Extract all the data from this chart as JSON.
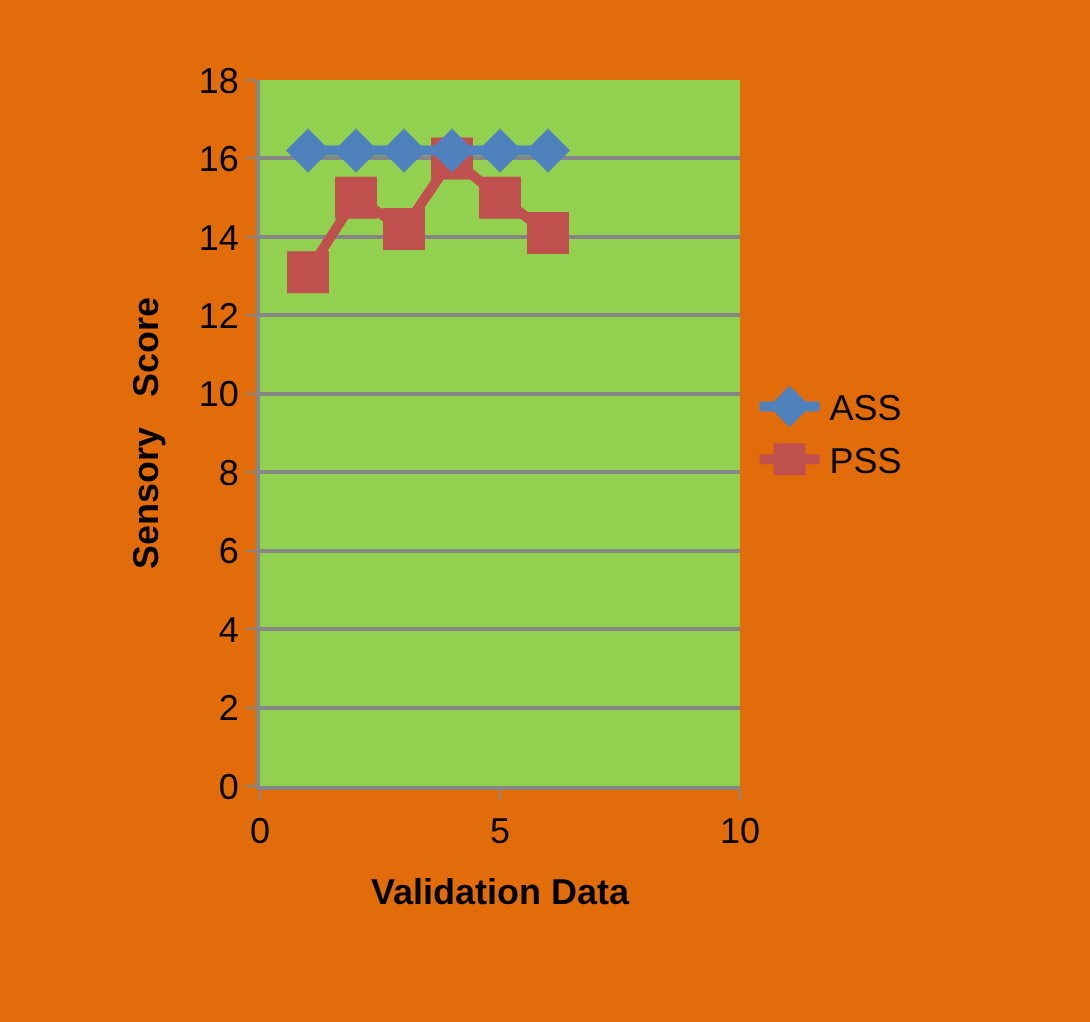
{
  "chart_data": {
    "type": "line",
    "xlabel": "Validation Data",
    "ylabel": "Sensory   Score",
    "x": [
      1,
      2,
      3,
      4,
      5,
      6
    ],
    "series": [
      {
        "name": "ASS",
        "color": "#4f81bd",
        "values": [
          16.2,
          16.2,
          16.2,
          16.2,
          16.2,
          16.2
        ],
        "marker": "diamond"
      },
      {
        "name": "PSS",
        "color": "#c0504d",
        "values": [
          13.1,
          15.0,
          14.2,
          16.0,
          15.0,
          14.1
        ],
        "marker": "square"
      }
    ],
    "xlim": [
      0,
      10
    ],
    "xticks": [
      0,
      5,
      10
    ],
    "ylim": [
      0,
      18
    ],
    "yticks": [
      0,
      2,
      4,
      6,
      8,
      10,
      12,
      14,
      16,
      18
    ],
    "grid": "y",
    "legend": "right",
    "line_style": "solid"
  }
}
